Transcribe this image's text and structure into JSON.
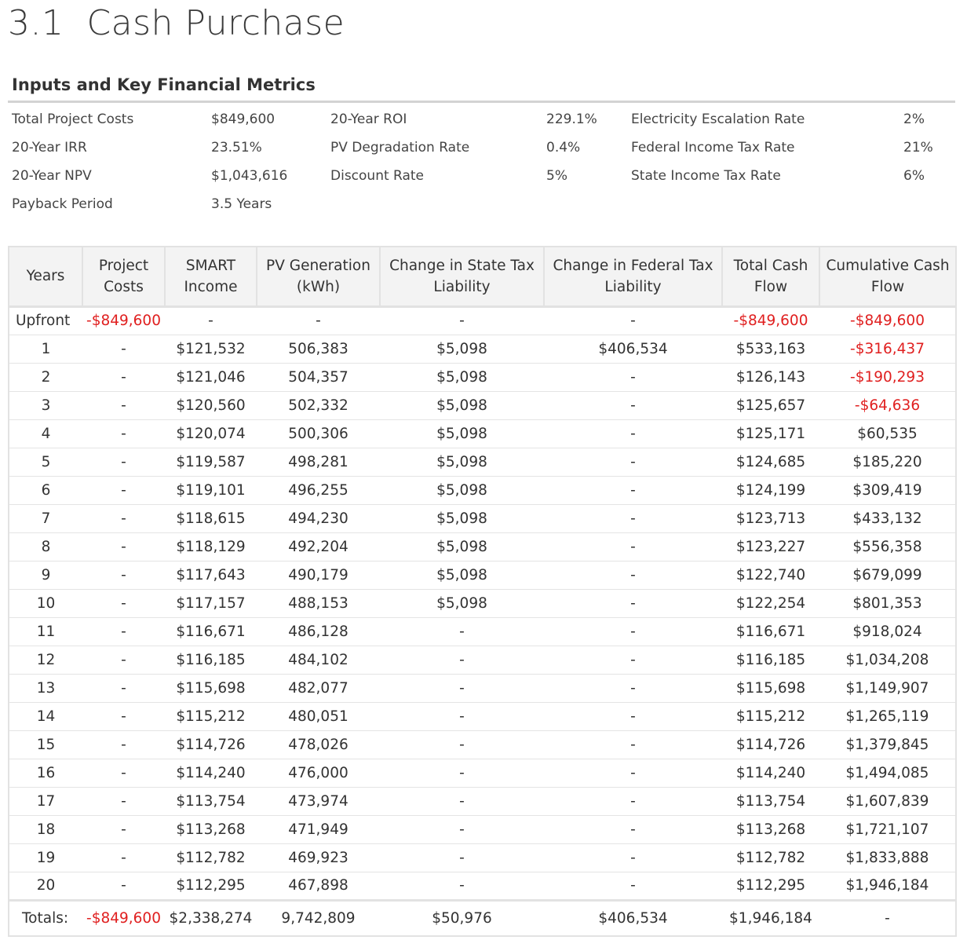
{
  "page": {
    "title": "3.1  Cash Purchase",
    "section_heading": "Inputs and Key Financial Metrics"
  },
  "metrics": {
    "col1": [
      {
        "label": "Total Project Costs",
        "value": "$849,600"
      },
      {
        "label": "20-Year IRR",
        "value": "23.51%"
      },
      {
        "label": "20-Year NPV",
        "value": "$1,043,616"
      },
      {
        "label": "Payback Period",
        "value": "3.5 Years"
      }
    ],
    "col2": [
      {
        "label": "20-Year ROI",
        "value": "229.1%"
      },
      {
        "label": "PV Degradation Rate",
        "value": "0.4%"
      },
      {
        "label": "Discount Rate",
        "value": "5%"
      }
    ],
    "col3": [
      {
        "label": "Electricity Escalation Rate",
        "value": "2%"
      },
      {
        "label": "Federal Income Tax Rate",
        "value": "21%"
      },
      {
        "label": "State Income Tax Rate",
        "value": "6%"
      }
    ]
  },
  "table": {
    "headers": [
      "Years",
      "Project Costs",
      "SMART Income",
      "PV Generation (kWh)",
      "Change in State Tax Liability",
      "Change in Federal Tax Liability",
      "Total Cash Flow",
      "Cumulative Cash Flow"
    ],
    "negative_color": "#e02020",
    "rows": [
      {
        "cells": [
          "Upfront",
          "-$849,600",
          "-",
          "-",
          "-",
          "-",
          "-$849,600",
          "-$849,600"
        ],
        "neg": [
          1,
          6,
          7
        ]
      },
      {
        "cells": [
          "1",
          "-",
          "$121,532",
          "506,383",
          "$5,098",
          "$406,534",
          "$533,163",
          "-$316,437"
        ],
        "neg": [
          7
        ]
      },
      {
        "cells": [
          "2",
          "-",
          "$121,046",
          "504,357",
          "$5,098",
          "-",
          "$126,143",
          "-$190,293"
        ],
        "neg": [
          7
        ]
      },
      {
        "cells": [
          "3",
          "-",
          "$120,560",
          "502,332",
          "$5,098",
          "-",
          "$125,657",
          "-$64,636"
        ],
        "neg": [
          7
        ]
      },
      {
        "cells": [
          "4",
          "-",
          "$120,074",
          "500,306",
          "$5,098",
          "-",
          "$125,171",
          "$60,535"
        ],
        "neg": []
      },
      {
        "cells": [
          "5",
          "-",
          "$119,587",
          "498,281",
          "$5,098",
          "-",
          "$124,685",
          "$185,220"
        ],
        "neg": []
      },
      {
        "cells": [
          "6",
          "-",
          "$119,101",
          "496,255",
          "$5,098",
          "-",
          "$124,199",
          "$309,419"
        ],
        "neg": []
      },
      {
        "cells": [
          "7",
          "-",
          "$118,615",
          "494,230",
          "$5,098",
          "-",
          "$123,713",
          "$433,132"
        ],
        "neg": []
      },
      {
        "cells": [
          "8",
          "-",
          "$118,129",
          "492,204",
          "$5,098",
          "-",
          "$123,227",
          "$556,358"
        ],
        "neg": []
      },
      {
        "cells": [
          "9",
          "-",
          "$117,643",
          "490,179",
          "$5,098",
          "-",
          "$122,740",
          "$679,099"
        ],
        "neg": []
      },
      {
        "cells": [
          "10",
          "-",
          "$117,157",
          "488,153",
          "$5,098",
          "-",
          "$122,254",
          "$801,353"
        ],
        "neg": []
      },
      {
        "cells": [
          "11",
          "-",
          "$116,671",
          "486,128",
          "-",
          "-",
          "$116,671",
          "$918,024"
        ],
        "neg": []
      },
      {
        "cells": [
          "12",
          "-",
          "$116,185",
          "484,102",
          "-",
          "-",
          "$116,185",
          "$1,034,208"
        ],
        "neg": []
      },
      {
        "cells": [
          "13",
          "-",
          "$115,698",
          "482,077",
          "-",
          "-",
          "$115,698",
          "$1,149,907"
        ],
        "neg": []
      },
      {
        "cells": [
          "14",
          "-",
          "$115,212",
          "480,051",
          "-",
          "-",
          "$115,212",
          "$1,265,119"
        ],
        "neg": []
      },
      {
        "cells": [
          "15",
          "-",
          "$114,726",
          "478,026",
          "-",
          "-",
          "$114,726",
          "$1,379,845"
        ],
        "neg": []
      },
      {
        "cells": [
          "16",
          "-",
          "$114,240",
          "476,000",
          "-",
          "-",
          "$114,240",
          "$1,494,085"
        ],
        "neg": []
      },
      {
        "cells": [
          "17",
          "-",
          "$113,754",
          "473,974",
          "-",
          "-",
          "$113,754",
          "$1,607,839"
        ],
        "neg": []
      },
      {
        "cells": [
          "18",
          "-",
          "$113,268",
          "471,949",
          "-",
          "-",
          "$113,268",
          "$1,721,107"
        ],
        "neg": []
      },
      {
        "cells": [
          "19",
          "-",
          "$112,782",
          "469,923",
          "-",
          "-",
          "$112,782",
          "$1,833,888"
        ],
        "neg": []
      },
      {
        "cells": [
          "20",
          "-",
          "$112,295",
          "467,898",
          "-",
          "-",
          "$112,295",
          "$1,946,184"
        ],
        "neg": []
      }
    ],
    "totals": {
      "cells": [
        "Totals:",
        "-$849,600",
        "$2,338,274",
        "9,742,809",
        "$50,976",
        "$406,534",
        "$1,946,184",
        "-"
      ],
      "neg": [
        1
      ]
    }
  }
}
